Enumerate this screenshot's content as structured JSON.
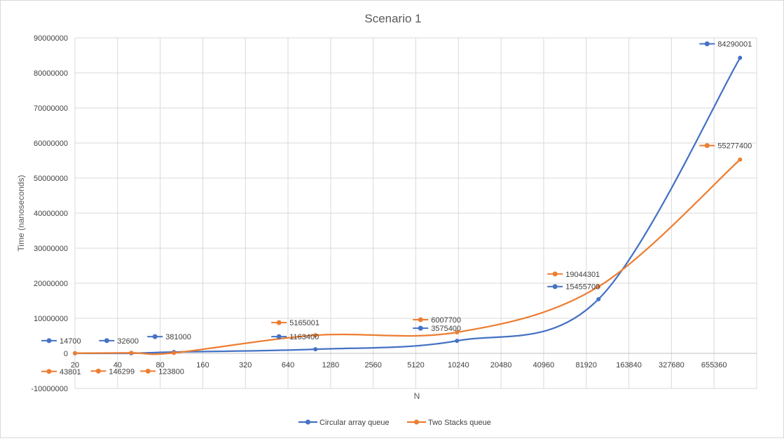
{
  "chart_data": {
    "type": "line",
    "title": "Scenario 1",
    "xlabel": "N",
    "ylabel": "Time (nanoseconds)",
    "x_scale": "log2",
    "categories": [
      "20",
      "40",
      "80",
      "160",
      "320",
      "640",
      "1280",
      "2560",
      "5120",
      "10240",
      "20480",
      "40960",
      "81920",
      "163840",
      "327680",
      "655360"
    ],
    "ylim": [
      -10000000,
      90000000
    ],
    "yticks": [
      "-10000000",
      "0",
      "10000000",
      "20000000",
      "30000000",
      "40000000",
      "50000000",
      "60000000",
      "70000000",
      "80000000",
      "90000000"
    ],
    "grid": true,
    "legend_position": "bottom",
    "series": [
      {
        "name": "Circular array queue",
        "color": "#4472c4",
        "points": [
          {
            "x": 20,
            "y": 14700,
            "label": "14700"
          },
          {
            "x": 50,
            "y": 32600,
            "label": "32600"
          },
          {
            "x": 100,
            "y": 381000,
            "label": "381000"
          },
          {
            "x": 1000,
            "y": 1163400,
            "label": "1163400"
          },
          {
            "x": 10000,
            "y": 3575400,
            "label": "3575400"
          },
          {
            "x": 100000,
            "y": 15455700,
            "label": "15455700"
          },
          {
            "x": 1000000,
            "y": 84290001,
            "label": "84290001"
          }
        ]
      },
      {
        "name": "Two Stacks queue",
        "color": "#ed7d31",
        "points": [
          {
            "x": 20,
            "y": 43801,
            "label": "43801"
          },
          {
            "x": 50,
            "y": 146299,
            "label": "146299"
          },
          {
            "x": 100,
            "y": 123800,
            "label": "123800"
          },
          {
            "x": 1000,
            "y": 5165001,
            "label": "5165001"
          },
          {
            "x": 10000,
            "y": 6007700,
            "label": "6007700"
          },
          {
            "x": 100000,
            "y": 19044301,
            "label": "19044301"
          },
          {
            "x": 1000000,
            "y": 55277400,
            "label": "55277400"
          }
        ]
      }
    ]
  }
}
